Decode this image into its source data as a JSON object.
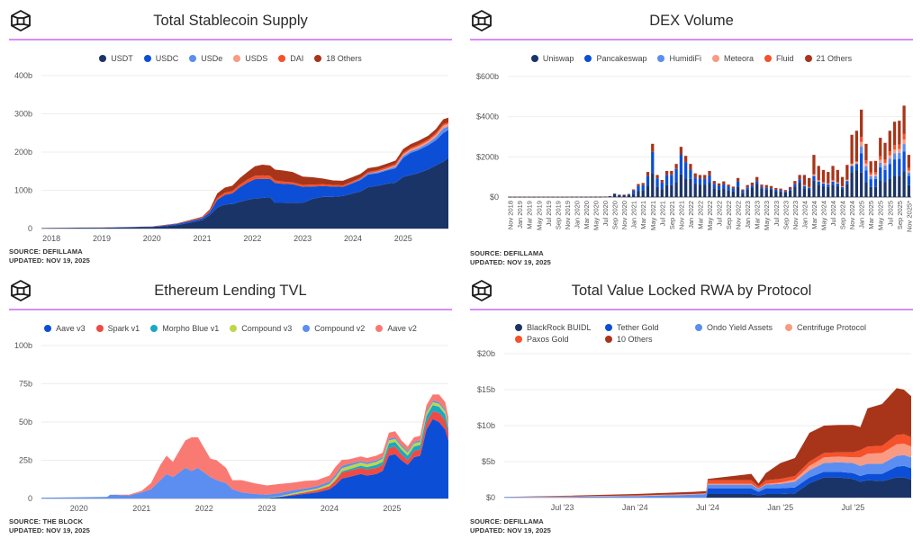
{
  "source_label": "SOURCE:",
  "updated_label": "UPDATED:",
  "chart_data": [
    {
      "id": "stablecoin",
      "type": "area",
      "stacked": true,
      "title": "Total Stablecoin Supply",
      "xlabel": "",
      "ylabel": "",
      "ylim": [
        0,
        400
      ],
      "xlim": [
        2017.8,
        2025.9
      ],
      "y_ticks": [
        0,
        100,
        200,
        300,
        400
      ],
      "y_tick_labels": [
        "0",
        "100b",
        "200b",
        "300b",
        "400b"
      ],
      "x_ticks": [
        2018,
        2019,
        2020,
        2021,
        2022,
        2023,
        2024,
        2025
      ],
      "x_tick_labels": [
        "2018",
        "2019",
        "2020",
        "2021",
        "2022",
        "2023",
        "2024",
        "2025"
      ],
      "grid": true,
      "legend_position": "top-center",
      "source": "DEFILLAMA",
      "updated": "NOV 19, 2025",
      "x": [
        2017.8,
        2018.5,
        2019.0,
        2019.5,
        2020.0,
        2020.25,
        2020.5,
        2020.75,
        2021.0,
        2021.15,
        2021.3,
        2021.45,
        2021.6,
        2021.75,
        2021.9,
        2022.05,
        2022.2,
        2022.35,
        2022.45,
        2022.6,
        2022.8,
        2023.0,
        2023.2,
        2023.4,
        2023.6,
        2023.8,
        2024.0,
        2024.15,
        2024.3,
        2024.5,
        2024.7,
        2024.85,
        2025.0,
        2025.15,
        2025.3,
        2025.5,
        2025.65,
        2025.8,
        2025.9
      ],
      "series": [
        {
          "name": "USDT",
          "color": "#1b3468",
          "values": [
            1,
            2,
            2,
            3,
            4,
            6,
            9,
            15,
            22,
            35,
            55,
            63,
            64,
            70,
            75,
            79,
            80,
            82,
            67,
            67,
            68,
            67,
            78,
            83,
            83,
            85,
            92,
            97,
            108,
            112,
            118,
            120,
            135,
            140,
            145,
            155,
            165,
            175,
            185
          ]
        },
        {
          "name": "USDC",
          "color": "#0c4fd6",
          "values": [
            0.3,
            0.5,
            0.5,
            0.7,
            1,
            2,
            3,
            4,
            5,
            8,
            20,
            25,
            28,
            38,
            45,
            50,
            50,
            48,
            52,
            50,
            48,
            42,
            32,
            28,
            27,
            24,
            27,
            30,
            33,
            33,
            35,
            38,
            50,
            58,
            60,
            63,
            66,
            75,
            73
          ]
        },
        {
          "name": "USDe",
          "color": "#5b8ef0",
          "values": [
            0,
            0,
            0,
            0,
            0,
            0,
            0,
            0,
            0,
            0,
            0,
            0,
            0,
            0,
            0,
            0,
            0,
            0,
            0,
            0,
            0,
            0,
            0,
            0,
            0,
            0,
            1,
            2,
            3,
            3,
            3,
            4,
            5,
            5,
            5,
            6,
            8,
            12,
            9
          ]
        },
        {
          "name": "USDS",
          "color": "#f99a83",
          "values": [
            0,
            0,
            0,
            0,
            0,
            0,
            0,
            0,
            0,
            0,
            0,
            0,
            0,
            0,
            0,
            0,
            0,
            0,
            0,
            0,
            0,
            0,
            0,
            0,
            0,
            0,
            0,
            0,
            0,
            1,
            2,
            3,
            4,
            4,
            5,
            5,
            6,
            7,
            7
          ]
        },
        {
          "name": "DAI",
          "color": "#f5512b",
          "values": [
            0.1,
            0.1,
            0.1,
            0.2,
            0.2,
            0.3,
            0.5,
            1,
            2,
            3,
            5,
            6,
            6,
            7,
            8,
            9,
            9,
            8,
            7,
            6,
            5,
            5,
            5,
            5,
            4,
            4,
            4,
            4,
            4,
            4,
            4,
            4,
            4,
            4,
            4,
            4,
            4,
            4,
            4
          ]
        },
        {
          "name": "18 Others",
          "color": "#a8351a",
          "values": [
            0.1,
            0.1,
            0.2,
            0.3,
            0.5,
            1,
            1,
            2,
            2,
            4,
            12,
            13,
            14,
            17,
            20,
            25,
            28,
            27,
            28,
            29,
            27,
            22,
            19,
            15,
            12,
            12,
            11,
            10,
            10,
            9,
            9,
            9,
            10,
            10,
            10,
            10,
            11,
            13,
            12
          ]
        }
      ]
    },
    {
      "id": "dex",
      "type": "bar",
      "stacked": true,
      "title": "DEX Volume",
      "xlabel": "",
      "ylabel": "",
      "ylim": [
        0,
        600
      ],
      "y_ticks": [
        0,
        200,
        400,
        600
      ],
      "y_tick_labels": [
        "$0",
        "$200b",
        "$400b",
        "$600b"
      ],
      "grid": true,
      "legend_position": "top-center",
      "source": "DEFILLAMA",
      "updated": "NOV 19, 2025",
      "x_tick_labels": [
        "Nov 2018",
        "Jan 2019",
        "Mar 2019",
        "May 2019",
        "Jul 2019",
        "Sep 2019",
        "Nov 2019",
        "Jan 2020",
        "Mar 2020",
        "May 2020",
        "Jul 2020",
        "Sep 2020",
        "Nov 2020",
        "Jan 2021",
        "Mar 2021",
        "May 2021",
        "Jul 2021",
        "Sep 2021",
        "Nov 2021",
        "Jan 2022",
        "Mar 2022",
        "May 2022",
        "Jul 2022",
        "Sep 2022",
        "Nov 2022",
        "Jan 2023",
        "Mar 2023",
        "May 2023",
        "Jul 2023",
        "Sep 2023",
        "Nov 2023",
        "Jan 2024",
        "Mar 2024",
        "May 2024",
        "Jul 2024",
        "Sep 2024",
        "Nov 2024",
        "Jan 2025",
        "Mar 2025",
        "May 2025",
        "Jul 2025",
        "Sep 2025",
        "Nov 2025*"
      ],
      "series_names": [
        "Uniswap",
        "Pancakeswap",
        "HumidiFi",
        "Meteora",
        "Fluid",
        "21 Others"
      ],
      "series_colors": [
        "#1b3468",
        "#0c4fd6",
        "#5b8ef0",
        "#f99a83",
        "#f5512b",
        "#a8351a"
      ],
      "totals": [
        0.3,
        0.3,
        0.3,
        0.3,
        0.3,
        0.3,
        0.3,
        0.3,
        0.3,
        0.3,
        0.3,
        0.3,
        0.3,
        0.5,
        0.5,
        0.5,
        0.5,
        0.8,
        1,
        1,
        2,
        5,
        18,
        12,
        12,
        15,
        38,
        65,
        70,
        125,
        265,
        110,
        85,
        130,
        130,
        165,
        250,
        205,
        165,
        118,
        110,
        110,
        130,
        80,
        68,
        78,
        62,
        52,
        95,
        38,
        60,
        72,
        100,
        62,
        60,
        55,
        45,
        42,
        35,
        50,
        80,
        110,
        110,
        95,
        210,
        155,
        135,
        125,
        155,
        135,
        100,
        160,
        310,
        330,
        435,
        265,
        178,
        180,
        295,
        270,
        330,
        375,
        380,
        455,
        210
      ],
      "shares": {
        "early": [
          0.8,
          0.15,
          0,
          0,
          0,
          0.05
        ],
        "2021": [
          0.45,
          0.4,
          0,
          0,
          0,
          0.15
        ],
        "2022": [
          0.55,
          0.28,
          0,
          0,
          0,
          0.17
        ],
        "2023": [
          0.65,
          0.15,
          0,
          0,
          0,
          0.2
        ],
        "2024": [
          0.4,
          0.1,
          0,
          0.03,
          0.01,
          0.46
        ],
        "2025": [
          0.28,
          0.22,
          0.08,
          0.05,
          0.06,
          0.31
        ]
      }
    },
    {
      "id": "lending",
      "type": "area",
      "stacked": true,
      "title": "Ethereum Lending TVL",
      "xlabel": "",
      "ylabel": "",
      "ylim": [
        0,
        100
      ],
      "xlim": [
        2019.4,
        2025.9
      ],
      "y_ticks": [
        0,
        25,
        50,
        75,
        100
      ],
      "y_tick_labels": [
        "0",
        "25b",
        "50b",
        "75b",
        "100b"
      ],
      "x_ticks": [
        2020,
        2021,
        2022,
        2023,
        2024,
        2025
      ],
      "x_tick_labels": [
        "2020",
        "2021",
        "2022",
        "2023",
        "2024",
        "2025"
      ],
      "grid": true,
      "legend_position": "top-center",
      "source": "THE BLOCK",
      "updated": "NOV 19, 2025",
      "x": [
        2019.4,
        2020.0,
        2020.45,
        2020.5,
        2020.8,
        2021.0,
        2021.15,
        2021.3,
        2021.4,
        2021.5,
        2021.7,
        2021.8,
        2021.9,
        2022.1,
        2022.2,
        2022.35,
        2022.45,
        2022.6,
        2022.8,
        2023.0,
        2023.2,
        2023.4,
        2023.6,
        2023.8,
        2024.0,
        2024.1,
        2024.2,
        2024.3,
        2024.5,
        2024.6,
        2024.75,
        2024.85,
        2024.95,
        2025.05,
        2025.15,
        2025.25,
        2025.35,
        2025.45,
        2025.55,
        2025.65,
        2025.75,
        2025.85,
        2025.9
      ],
      "series": [
        {
          "name": "Aave v3",
          "color": "#0c4fd6",
          "values": [
            0,
            0,
            0,
            0,
            0,
            0,
            0,
            0,
            0,
            0,
            0,
            0,
            0,
            0,
            0,
            0,
            0,
            0,
            0,
            0.3,
            1,
            2,
            3,
            4,
            6,
            9,
            13,
            14,
            16,
            15,
            16,
            18,
            28,
            29,
            25,
            22,
            27,
            28,
            45,
            52,
            50,
            45,
            38
          ]
        },
        {
          "name": "Spark v1",
          "color": "#ef4a43",
          "values": [
            0,
            0,
            0,
            0,
            0,
            0,
            0,
            0,
            0,
            0,
            0,
            0,
            0,
            0,
            0,
            0,
            0,
            0,
            0,
            0,
            0,
            0.5,
            1,
            1.5,
            2,
            3,
            4,
            4,
            4,
            4,
            4,
            4,
            5,
            5,
            4,
            3,
            4,
            4,
            5,
            5,
            6,
            6,
            5
          ]
        },
        {
          "name": "Morpho Blue v1",
          "color": "#1aa8c4",
          "values": [
            0,
            0,
            0,
            0,
            0,
            0,
            0,
            0,
            0,
            0,
            0,
            0,
            0,
            0,
            0,
            0,
            0,
            0,
            0,
            0,
            0,
            0,
            0,
            0,
            0,
            0.3,
            0.8,
            1,
            1.5,
            1.5,
            2,
            2,
            3,
            3,
            3,
            3,
            3,
            3,
            4,
            4,
            4,
            4,
            3
          ]
        },
        {
          "name": "Compound v3",
          "color": "#bfd647",
          "values": [
            0,
            0,
            0,
            0,
            0,
            0,
            0,
            0,
            0,
            0,
            0,
            0,
            0,
            0,
            0,
            0,
            0,
            0,
            0,
            0.2,
            0.5,
            0.8,
            1,
            1,
            1.5,
            2,
            2,
            2,
            2,
            2,
            2,
            2,
            2,
            2,
            2,
            2,
            2,
            2,
            2,
            2,
            2,
            2,
            2
          ]
        },
        {
          "name": "Compound v2",
          "color": "#5b8ef0",
          "values": [
            0.5,
            0.8,
            1,
            2.5,
            2,
            4,
            6,
            12,
            16,
            14,
            20,
            18,
            20,
            14,
            12,
            10,
            6,
            4,
            3,
            2,
            2,
            2,
            1.5,
            1.5,
            1.5,
            1.5,
            1.5,
            1.5,
            1,
            1,
            1,
            1,
            1,
            1,
            1,
            1,
            1,
            1,
            1,
            1,
            1,
            1,
            1
          ]
        },
        {
          "name": "Aave v2",
          "color": "#f97a73",
          "values": [
            0,
            0,
            0,
            0,
            0.5,
            1,
            4,
            10,
            12,
            10,
            18,
            22,
            20,
            12,
            13,
            10,
            6,
            8,
            7,
            6,
            6,
            5,
            5,
            4,
            4,
            5,
            4,
            3,
            3,
            3,
            3,
            3,
            4,
            4,
            3,
            3,
            3,
            3,
            4,
            4,
            5,
            5,
            4
          ]
        }
      ]
    },
    {
      "id": "rwa",
      "type": "area",
      "stacked": true,
      "title": "Total Value Locked RWA by Protocol",
      "xlabel": "",
      "ylabel": "",
      "ylim": [
        0,
        20
      ],
      "xlim": [
        2023.1,
        2025.9
      ],
      "y_ticks": [
        0,
        5,
        10,
        15,
        20
      ],
      "y_tick_labels": [
        "$0",
        "$5b",
        "$10b",
        "$15b",
        "$20b"
      ],
      "x_ticks": [
        2023.5,
        2024.0,
        2024.5,
        2025.0,
        2025.5
      ],
      "x_tick_labels": [
        "Jul '23",
        "Jan '24",
        "Jul '24",
        "Jan '25",
        "Jul '25"
      ],
      "grid": true,
      "legend_position": "top-left",
      "source": "DEFILLAMA",
      "updated": "NOV 19, 2025",
      "x": [
        2023.1,
        2023.5,
        2024.0,
        2024.4,
        2024.49,
        2024.5,
        2024.8,
        2024.85,
        2024.9,
        2025.0,
        2025.1,
        2025.2,
        2025.3,
        2025.4,
        2025.5,
        2025.55,
        2025.6,
        2025.7,
        2025.8,
        2025.85,
        2025.9
      ],
      "series": [
        {
          "name": "BlackRock BUIDL",
          "color": "#1b3468",
          "values": [
            0,
            0,
            0,
            0,
            0,
            0.5,
            0.5,
            0.3,
            0.5,
            0.5,
            0.6,
            2,
            2.8,
            2.8,
            2.6,
            2.2,
            2.4,
            2.3,
            2.8,
            2.8,
            2.5
          ]
        },
        {
          "name": "Tether Gold",
          "color": "#0c4fd6",
          "values": [
            0,
            0,
            0,
            0,
            0,
            0.8,
            0.8,
            0.5,
            0.8,
            0.8,
            0.8,
            0.8,
            0.8,
            0.8,
            0.8,
            0.8,
            0.9,
            1,
            1.5,
            1.6,
            1.6
          ]
        },
        {
          "name": "Ondo Yield Assets",
          "color": "#5b8ef0",
          "values": [
            0.1,
            0.1,
            0.2,
            0.4,
            0.5,
            0.5,
            0.5,
            0.4,
            0.5,
            0.6,
            0.8,
            1,
            1.2,
            1.3,
            1.4,
            1.4,
            1.4,
            1.4,
            1.5,
            1.5,
            1.5
          ]
        },
        {
          "name": "Centrifuge Protocol",
          "color": "#f99a83",
          "values": [
            0,
            0.05,
            0.1,
            0.1,
            0.1,
            0.1,
            0.1,
            0.05,
            0.1,
            0.2,
            0.3,
            0.6,
            0.8,
            0.8,
            0.8,
            1.2,
            1.4,
            1.5,
            1.6,
            1.6,
            1.5
          ]
        },
        {
          "name": "Paxos Gold",
          "color": "#f5512b",
          "values": [
            0,
            0,
            0,
            0,
            0,
            0.5,
            0.5,
            0.3,
            0.5,
            0.5,
            0.5,
            0.6,
            0.6,
            0.6,
            0.7,
            1,
            1,
            1,
            1.3,
            1.3,
            1.3
          ]
        },
        {
          "name": "10 Others",
          "color": "#a8351a",
          "values": [
            0,
            0.1,
            0.2,
            0.3,
            0.3,
            0.2,
            0.9,
            0.4,
            1,
            2.2,
            2.5,
            4,
            3.8,
            3.8,
            3.8,
            3.2,
            5.3,
            5.8,
            6.5,
            6.2,
            5.7
          ]
        }
      ]
    }
  ]
}
